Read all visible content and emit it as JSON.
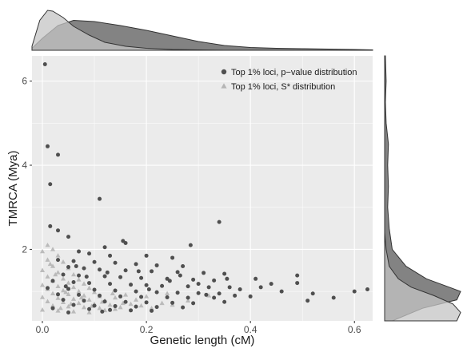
{
  "chart_data": {
    "type": "scatter",
    "xlabel": "Genetic length (cM)",
    "ylabel": "TMRCA (Mya)",
    "xlim": [
      -0.02,
      0.635
    ],
    "ylim": [
      0.3,
      6.6
    ],
    "xticks": [
      0.0,
      0.2,
      0.4,
      0.6
    ],
    "xtick_labels": [
      "0.0",
      "0.2",
      "0.4",
      "0.6"
    ],
    "yticks": [
      2,
      4,
      6
    ],
    "ytick_labels": [
      "2",
      "4",
      "6"
    ],
    "grid": true,
    "legend_position": "top-right",
    "marginal_densities": true,
    "series": [
      {
        "name": "Top 1% loci, p−value distribution",
        "marker": "circle",
        "color": "#4f4f4f",
        "points": [
          [
            0.005,
            6.4
          ],
          [
            0.01,
            4.45
          ],
          [
            0.03,
            4.25
          ],
          [
            0.015,
            3.55
          ],
          [
            0.11,
            3.2
          ],
          [
            0.34,
            2.65
          ],
          [
            0.015,
            2.55
          ],
          [
            0.03,
            2.45
          ],
          [
            0.05,
            2.3
          ],
          [
            0.155,
            2.2
          ],
          [
            0.16,
            2.15
          ],
          [
            0.12,
            2.05
          ],
          [
            0.285,
            2.1
          ],
          [
            0.07,
            1.95
          ],
          [
            0.09,
            1.9
          ],
          [
            0.13,
            1.85
          ],
          [
            0.2,
            1.85
          ],
          [
            0.25,
            1.8
          ],
          [
            0.03,
            1.75
          ],
          [
            0.06,
            1.72
          ],
          [
            0.1,
            1.7
          ],
          [
            0.14,
            1.68
          ],
          [
            0.18,
            1.65
          ],
          [
            0.22,
            1.62
          ],
          [
            0.27,
            1.6
          ],
          [
            0.05,
            1.58
          ],
          [
            0.08,
            1.55
          ],
          [
            0.11,
            1.52
          ],
          [
            0.16,
            1.5
          ],
          [
            0.21,
            1.48
          ],
          [
            0.26,
            1.46
          ],
          [
            0.31,
            1.44
          ],
          [
            0.35,
            1.42
          ],
          [
            0.04,
            1.4
          ],
          [
            0.07,
            1.38
          ],
          [
            0.12,
            1.36
          ],
          [
            0.15,
            1.34
          ],
          [
            0.19,
            1.32
          ],
          [
            0.24,
            1.3
          ],
          [
            0.29,
            1.28
          ],
          [
            0.33,
            1.26
          ],
          [
            0.41,
            1.3
          ],
          [
            0.02,
            1.25
          ],
          [
            0.06,
            1.22
          ],
          [
            0.09,
            1.2
          ],
          [
            0.13,
            1.18
          ],
          [
            0.17,
            1.16
          ],
          [
            0.2,
            1.15
          ],
          [
            0.23,
            1.13
          ],
          [
            0.28,
            1.12
          ],
          [
            0.32,
            1.1
          ],
          [
            0.36,
            1.1
          ],
          [
            0.44,
            1.18
          ],
          [
            0.49,
            1.38
          ],
          [
            0.01,
            1.08
          ],
          [
            0.05,
            1.06
          ],
          [
            0.1,
            1.04
          ],
          [
            0.14,
            1.02
          ],
          [
            0.18,
            1.0
          ],
          [
            0.22,
            0.98
          ],
          [
            0.26,
            0.97
          ],
          [
            0.3,
            0.96
          ],
          [
            0.34,
            0.95
          ],
          [
            0.38,
            1.05
          ],
          [
            0.42,
            1.1
          ],
          [
            0.46,
            1.0
          ],
          [
            0.49,
            1.2
          ],
          [
            0.52,
            0.95
          ],
          [
            0.03,
            0.93
          ],
          [
            0.07,
            0.92
          ],
          [
            0.11,
            0.9
          ],
          [
            0.15,
            0.88
          ],
          [
            0.19,
            0.87
          ],
          [
            0.24,
            0.86
          ],
          [
            0.28,
            0.85
          ],
          [
            0.33,
            0.85
          ],
          [
            0.37,
            0.9
          ],
          [
            0.4,
            0.88
          ],
          [
            0.04,
            0.8
          ],
          [
            0.08,
            0.78
          ],
          [
            0.12,
            0.76
          ],
          [
            0.16,
            0.75
          ],
          [
            0.2,
            0.74
          ],
          [
            0.25,
            0.73
          ],
          [
            0.29,
            0.72
          ],
          [
            0.35,
            0.75
          ],
          [
            0.06,
            0.68
          ],
          [
            0.1,
            0.66
          ],
          [
            0.14,
            0.65
          ],
          [
            0.18,
            0.64
          ],
          [
            0.22,
            0.63
          ],
          [
            0.27,
            0.62
          ],
          [
            0.02,
            0.6
          ],
          [
            0.09,
            0.58
          ],
          [
            0.13,
            0.56
          ],
          [
            0.17,
            0.55
          ],
          [
            0.21,
            0.54
          ],
          [
            0.05,
            0.5
          ],
          [
            0.115,
            0.52
          ],
          [
            0.6,
            1.0
          ],
          [
            0.625,
            1.05
          ],
          [
            0.56,
            0.85
          ],
          [
            0.51,
            0.78
          ],
          [
            0.185,
            1.48
          ],
          [
            0.065,
            1.6
          ],
          [
            0.245,
            1.25
          ],
          [
            0.3,
            1.18
          ],
          [
            0.085,
            1.35
          ],
          [
            0.045,
            1.12
          ],
          [
            0.125,
            1.45
          ],
          [
            0.205,
            1.05
          ],
          [
            0.265,
            1.38
          ],
          [
            0.315,
            0.92
          ],
          [
            0.355,
            1.3
          ]
        ]
      },
      {
        "name": "Top 1% loci, S* distribution",
        "marker": "triangle",
        "color": "#b5b5b5",
        "points": [
          [
            0.01,
            2.1
          ],
          [
            0.02,
            2.0
          ],
          [
            0.0,
            1.95
          ],
          [
            0.03,
            1.85
          ],
          [
            0.01,
            1.75
          ],
          [
            0.04,
            1.7
          ],
          [
            0.02,
            1.6
          ],
          [
            0.05,
            1.55
          ],
          [
            0.0,
            1.5
          ],
          [
            0.03,
            1.45
          ],
          [
            0.06,
            1.4
          ],
          [
            0.01,
            1.35
          ],
          [
            0.04,
            1.3
          ],
          [
            0.07,
            1.28
          ],
          [
            0.02,
            1.25
          ],
          [
            0.05,
            1.2
          ],
          [
            0.08,
            1.18
          ],
          [
            0.0,
            1.15
          ],
          [
            0.03,
            1.12
          ],
          [
            0.06,
            1.1
          ],
          [
            0.09,
            1.08
          ],
          [
            0.01,
            1.05
          ],
          [
            0.04,
            1.02
          ],
          [
            0.07,
            1.0
          ],
          [
            0.1,
            0.98
          ],
          [
            0.02,
            0.95
          ],
          [
            0.05,
            0.93
          ],
          [
            0.08,
            0.9
          ],
          [
            0.11,
            0.88
          ],
          [
            0.0,
            0.86
          ],
          [
            0.03,
            0.84
          ],
          [
            0.06,
            0.82
          ],
          [
            0.09,
            0.8
          ],
          [
            0.12,
            0.78
          ],
          [
            0.01,
            0.76
          ],
          [
            0.04,
            0.74
          ],
          [
            0.07,
            0.72
          ],
          [
            0.1,
            0.7
          ],
          [
            0.13,
            0.68
          ],
          [
            0.02,
            0.66
          ],
          [
            0.05,
            0.64
          ],
          [
            0.08,
            0.62
          ],
          [
            0.11,
            0.6
          ],
          [
            0.14,
            0.58
          ],
          [
            0.0,
            0.56
          ],
          [
            0.03,
            0.54
          ],
          [
            0.06,
            0.52
          ],
          [
            0.09,
            0.5
          ],
          [
            0.12,
            0.55
          ],
          [
            0.15,
            0.62
          ],
          [
            0.17,
            0.7
          ],
          [
            0.19,
            0.66
          ],
          [
            0.21,
            0.6
          ],
          [
            0.23,
            0.72
          ],
          [
            0.25,
            0.68
          ],
          [
            0.14,
            0.85
          ],
          [
            0.16,
            0.92
          ],
          [
            0.18,
            0.8
          ],
          [
            0.2,
            0.88
          ],
          [
            0.24,
            0.95
          ],
          [
            0.28,
            0.78
          ],
          [
            0.32,
            0.9
          ],
          [
            0.045,
            0.98
          ],
          [
            0.025,
            1.4
          ],
          [
            0.015,
            1.65
          ],
          [
            0.055,
            0.7
          ],
          [
            0.035,
            0.6
          ],
          [
            0.075,
            0.85
          ],
          [
            0.095,
            0.65
          ],
          [
            0.115,
            0.75
          ],
          [
            0.135,
            0.95
          ],
          [
            0.155,
            0.72
          ]
        ]
      }
    ],
    "top_density": [
      {
        "series": 0,
        "color": "#5a5a5a",
        "x": [
          -0.02,
          0.0,
          0.03,
          0.06,
          0.1,
          0.15,
          0.2,
          0.25,
          0.3,
          0.35,
          0.4,
          0.45,
          0.5,
          0.55,
          0.6,
          0.635
        ],
        "d": [
          0.05,
          0.3,
          0.62,
          0.75,
          0.72,
          0.62,
          0.5,
          0.36,
          0.22,
          0.12,
          0.07,
          0.05,
          0.04,
          0.03,
          0.02,
          0.01
        ]
      },
      {
        "series": 1,
        "color": "#c4c4c4",
        "x": [
          -0.02,
          -0.005,
          0.01,
          0.02,
          0.04,
          0.06,
          0.09,
          0.12,
          0.16,
          0.2,
          0.25,
          0.3,
          0.35,
          0.4
        ],
        "d": [
          0.1,
          0.75,
          1.0,
          0.98,
          0.82,
          0.6,
          0.38,
          0.2,
          0.1,
          0.05,
          0.02,
          0.01,
          0.0,
          0.0
        ]
      }
    ],
    "right_density": [
      {
        "series": 0,
        "color": "#5a5a5a",
        "y": [
          0.3,
          0.6,
          0.8,
          1.0,
          1.1,
          1.3,
          1.6,
          2.0,
          2.5,
          3.0,
          3.5,
          4.0,
          4.5,
          5.0,
          5.5,
          6.0,
          6.6
        ],
        "d": [
          0.1,
          0.5,
          0.95,
          1.0,
          0.85,
          0.55,
          0.28,
          0.1,
          0.06,
          0.04,
          0.05,
          0.04,
          0.05,
          0.02,
          0.01,
          0.02,
          0.01
        ]
      },
      {
        "series": 1,
        "color": "#c4c4c4",
        "y": [
          0.3,
          0.5,
          0.7,
          0.9,
          1.1,
          1.3,
          1.6,
          2.0,
          2.4,
          3.0
        ],
        "d": [
          0.95,
          1.0,
          0.9,
          0.65,
          0.35,
          0.18,
          0.06,
          0.02,
          0.0,
          0.0
        ]
      }
    ]
  }
}
